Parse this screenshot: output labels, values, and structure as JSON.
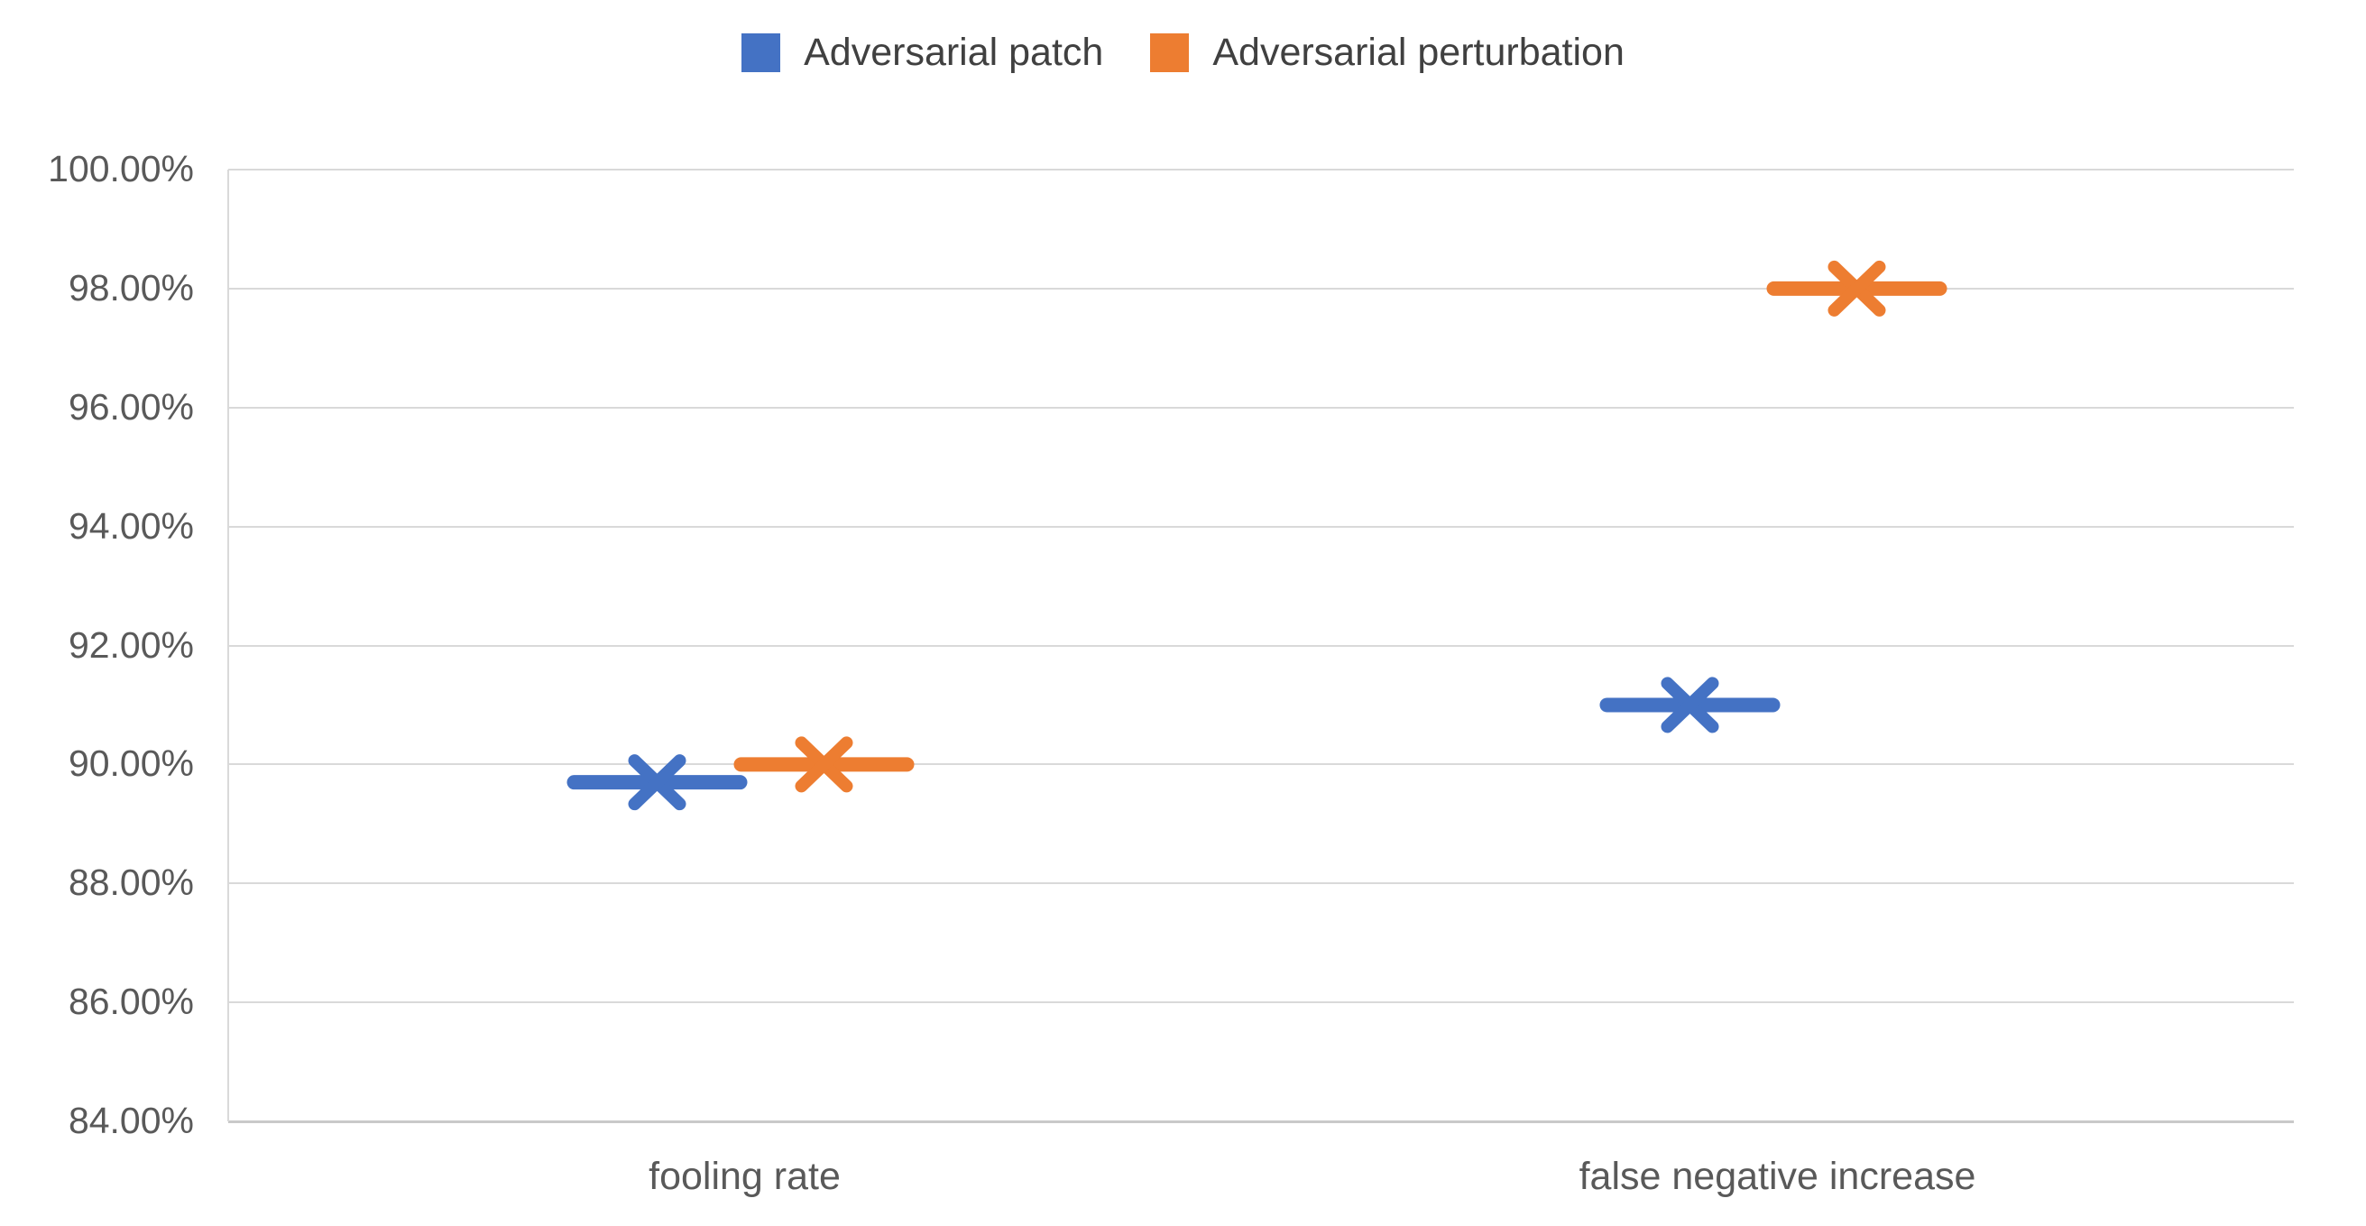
{
  "chart_data": {
    "type": "line",
    "marker_style": "x-with-horizontal-dash",
    "title": "",
    "xlabel": "",
    "ylabel": "",
    "categories": [
      "fooling rate",
      "false negative increase"
    ],
    "series": [
      {
        "name": "Adversarial patch",
        "color": "#4472C4",
        "values": [
          89.7,
          91.0
        ]
      },
      {
        "name": "Adversarial perturbation",
        "color": "#ED7D31",
        "values": [
          90.0,
          98.0
        ]
      }
    ],
    "ylim": [
      84,
      100
    ],
    "y_tick_step": 2,
    "y_ticks": [
      "100.00%",
      "98.00%",
      "96.00%",
      "94.00%",
      "92.00%",
      "90.00%",
      "88.00%",
      "86.00%",
      "84.00%"
    ],
    "grid": true,
    "legend_position": "top-center",
    "value_format": "0.00%"
  },
  "colors": {
    "background": "#FFFFFF",
    "gridline": "#D9D9D9",
    "axis": "#C9C9C9",
    "tick_label": "#595959",
    "legend_label": "#404040"
  }
}
